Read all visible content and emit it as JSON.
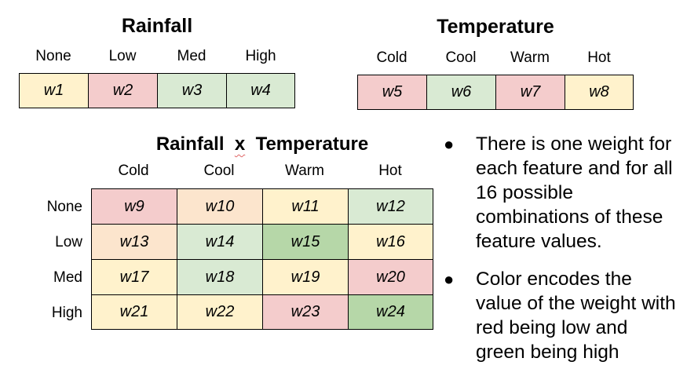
{
  "rainfall": {
    "title": "Rainfall",
    "headers": [
      "None",
      "Low",
      "Med",
      "High"
    ],
    "cells": [
      {
        "label": "w1",
        "color": "#fff2cc"
      },
      {
        "label": "w2",
        "color": "#f4cccc"
      },
      {
        "label": "w3",
        "color": "#d9ead3"
      },
      {
        "label": "w4",
        "color": "#d9ead3"
      }
    ]
  },
  "temperature": {
    "title": "Temperature",
    "headers": [
      "Cold",
      "Cool",
      "Warm",
      "Hot"
    ],
    "cells": [
      {
        "label": "w5",
        "color": "#f4cccc"
      },
      {
        "label": "w6",
        "color": "#d9ead3"
      },
      {
        "label": "w7",
        "color": "#f4cccc"
      },
      {
        "label": "w8",
        "color": "#fff2cc"
      }
    ]
  },
  "cross": {
    "title_left": "Rainfall",
    "title_x": "x",
    "title_right": "Temperature",
    "col_headers": [
      "Cold",
      "Cool",
      "Warm",
      "Hot"
    ],
    "row_headers": [
      "None",
      "Low",
      "Med",
      "High"
    ],
    "rows": [
      [
        {
          "label": "w9",
          "color": "#f4cccc"
        },
        {
          "label": "w10",
          "color": "#fce5cd"
        },
        {
          "label": "w11",
          "color": "#fff2cc"
        },
        {
          "label": "w12",
          "color": "#d9ead3"
        }
      ],
      [
        {
          "label": "w13",
          "color": "#fce5cd"
        },
        {
          "label": "w14",
          "color": "#d9ead3"
        },
        {
          "label": "w15",
          "color": "#b6d7a8"
        },
        {
          "label": "w16",
          "color": "#fff2cc"
        }
      ],
      [
        {
          "label": "w17",
          "color": "#fff2cc"
        },
        {
          "label": "w18",
          "color": "#d9ead3"
        },
        {
          "label": "w19",
          "color": "#fff2cc"
        },
        {
          "label": "w20",
          "color": "#f4cccc"
        }
      ],
      [
        {
          "label": "w21",
          "color": "#fff2cc"
        },
        {
          "label": "w22",
          "color": "#fff2cc"
        },
        {
          "label": "w23",
          "color": "#f4cccc"
        },
        {
          "label": "w24",
          "color": "#b6d7a8"
        }
      ]
    ]
  },
  "bullets": [
    "There is one weight for each feature and for all 16 possible combinations of these feature values.",
    "Color encodes the value of the weight with red being low and green being high"
  ],
  "bullet_glyph": "●"
}
